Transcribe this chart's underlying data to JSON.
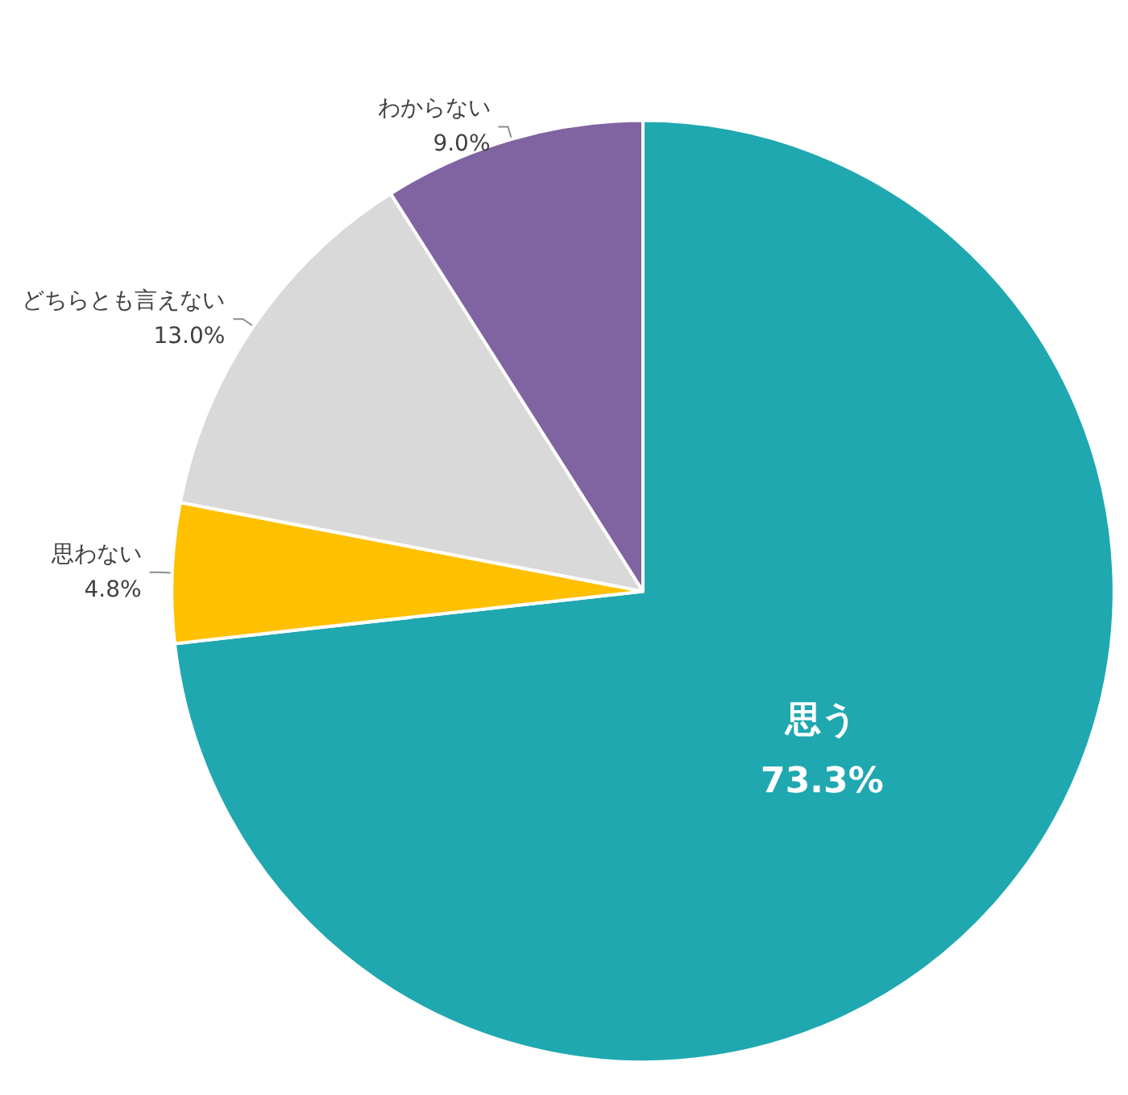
{
  "chart_data": {
    "type": "pie",
    "categories": [
      "思う",
      "思わない",
      "どちらとも言えない",
      "わからない"
    ],
    "values": [
      73.3,
      4.8,
      13.0,
      9.0
    ],
    "colors": [
      "#1fa8b0",
      "#ffc000",
      "#d9d9d9",
      "#8064a2"
    ],
    "value_labels": [
      "73.3%",
      "4.8%",
      "13.0%",
      "9.0%"
    ]
  }
}
